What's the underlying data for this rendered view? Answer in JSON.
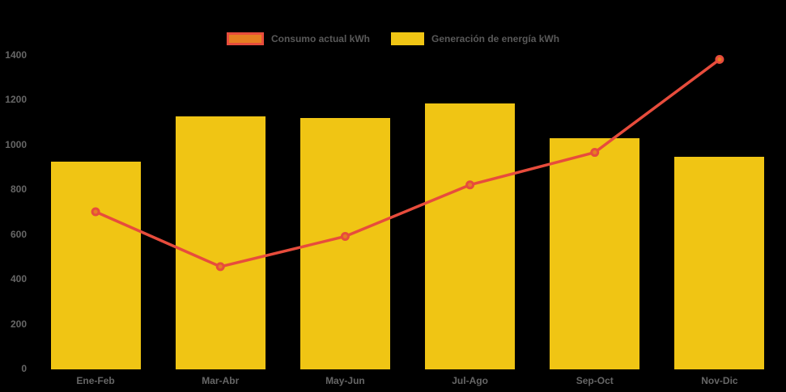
{
  "page": {
    "background": "#000000"
  },
  "chart_data": {
    "type": "combo-bar-line",
    "title": "",
    "xlabel": "",
    "ylabel": "",
    "categories": [
      "Ene-Feb",
      "Mar-Abr",
      "May-Jun",
      "Jul-Ago",
      "Sep-Oct",
      "Nov-Dic"
    ],
    "series": [
      {
        "name": "Consumo actual kWh",
        "type": "line",
        "color": "#E74C3C",
        "marker_fill": "#E67E22",
        "values": [
          700,
          455,
          590,
          820,
          965,
          1380
        ]
      },
      {
        "name": "Generación de energía kWh",
        "type": "bar",
        "color": "#F0C514",
        "values": [
          925,
          1125,
          1120,
          1185,
          1030,
          945
        ]
      }
    ],
    "ylim": [
      0,
      1400
    ],
    "y_ticks": [
      0,
      200,
      400,
      600,
      800,
      1000,
      1200,
      1400
    ],
    "grid": false,
    "legend_position": "top",
    "axis_text_color": "#666666",
    "legend_text_color": "#595959"
  }
}
